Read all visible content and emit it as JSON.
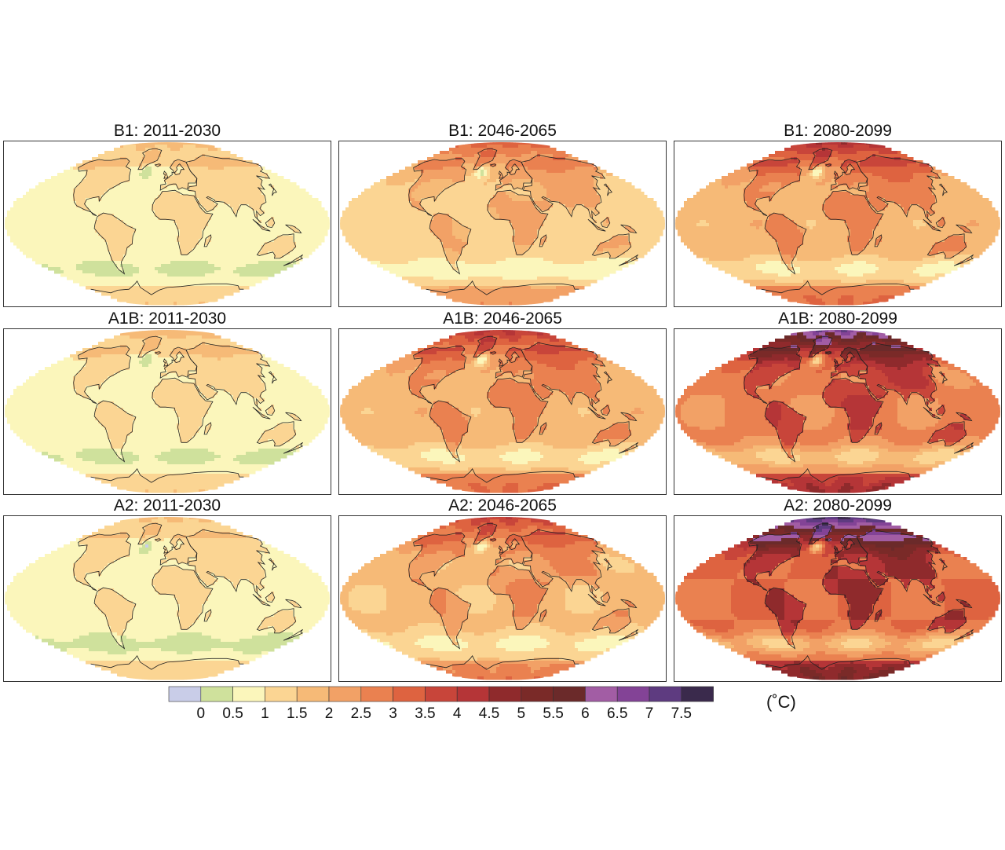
{
  "chart_data": {
    "type": "heatmap",
    "unit": "(˚C)",
    "colorbar": {
      "tick_labels": [
        "0",
        "0.5",
        "1",
        "1.5",
        "2",
        "2.5",
        "3",
        "3.5",
        "4",
        "4.5",
        "5",
        "5.5",
        "6",
        "6.5",
        "7",
        "7.5"
      ],
      "bins": [
        {
          "range": [
            -0.5,
            0
          ],
          "color": "#c9cde8"
        },
        {
          "range": [
            0,
            0.5
          ],
          "color": "#cfe19c"
        },
        {
          "range": [
            0.5,
            1
          ],
          "color": "#fbf6bb"
        },
        {
          "range": [
            1,
            1.5
          ],
          "color": "#fbd593"
        },
        {
          "range": [
            1.5,
            2
          ],
          "color": "#f6ba77"
        },
        {
          "range": [
            2,
            2.5
          ],
          "color": "#f2a166"
        },
        {
          "range": [
            2.5,
            3
          ],
          "color": "#ea8150"
        },
        {
          "range": [
            3,
            3.5
          ],
          "color": "#de6340"
        },
        {
          "range": [
            3.5,
            4
          ],
          "color": "#c8453a"
        },
        {
          "range": [
            4,
            4.5
          ],
          "color": "#b53537"
        },
        {
          "range": [
            4.5,
            5
          ],
          "color": "#8f2a2c"
        },
        {
          "range": [
            5,
            5.5
          ],
          "color": "#7a2a28"
        },
        {
          "range": [
            5.5,
            6
          ],
          "color": "#6b2a2a"
        },
        {
          "range": [
            6,
            6.5
          ],
          "color": "#a25da4"
        },
        {
          "range": [
            6.5,
            7
          ],
          "color": "#834396"
        },
        {
          "range": [
            7,
            7.5
          ],
          "color": "#5e3b80"
        },
        {
          "range": [
            7.5,
            8
          ],
          "color": "#3a2a4c"
        }
      ]
    },
    "panels": [
      {
        "title": "B1: 2011-2030",
        "scenario": "B1",
        "period": "2011-2030",
        "base_warming": 0.75,
        "polar_extra": 0.9
      },
      {
        "title": "B1: 2046-2065",
        "scenario": "B1",
        "period": "2046-2065",
        "base_warming": 1.3,
        "polar_extra": 2.0
      },
      {
        "title": "B1: 2080-2099",
        "scenario": "B1",
        "period": "2080-2099",
        "base_warming": 1.75,
        "polar_extra": 2.6
      },
      {
        "title": "A1B: 2011-2030",
        "scenario": "A1B",
        "period": "2011-2030",
        "base_warming": 0.75,
        "polar_extra": 1.0
      },
      {
        "title": "A1B: 2046-2065",
        "scenario": "A1B",
        "period": "2046-2065",
        "base_warming": 1.75,
        "polar_extra": 2.4
      },
      {
        "title": "A1B: 2080-2099",
        "scenario": "A1B",
        "period": "2080-2099",
        "base_warming": 2.6,
        "polar_extra": 4.2
      },
      {
        "title": "A2: 2011-2030",
        "scenario": "A2",
        "period": "2011-2030",
        "base_warming": 0.7,
        "polar_extra": 0.9
      },
      {
        "title": "A2: 2046-2065",
        "scenario": "A2",
        "period": "2046-2065",
        "base_warming": 1.6,
        "polar_extra": 2.3
      },
      {
        "title": "A2: 2080-2099",
        "scenario": "A2",
        "period": "2080-2099",
        "base_warming": 3.0,
        "polar_extra": 4.7
      }
    ]
  }
}
